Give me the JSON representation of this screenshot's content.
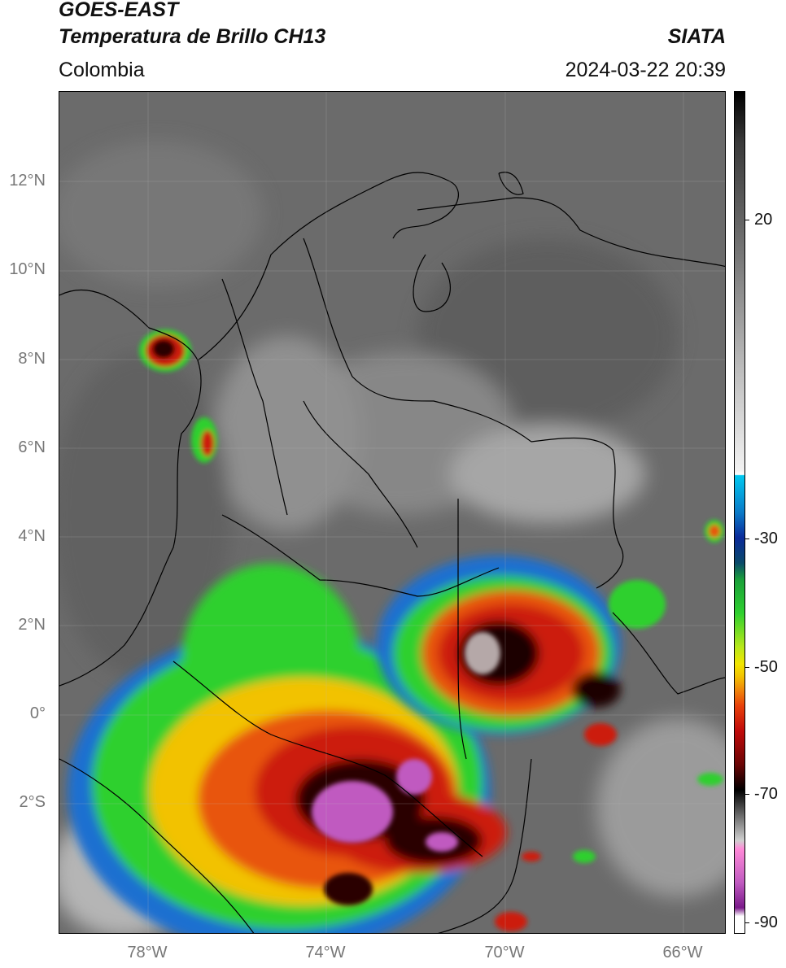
{
  "header": {
    "satellite": "GOES-EAST",
    "product": "Temperatura de Brillo CH13",
    "region": "Colombia",
    "organization": "SIATA",
    "datetime": "2024-03-22 20:39"
  },
  "axes": {
    "lat_labels": [
      "12°N",
      "10°N",
      "8°N",
      "6°N",
      "4°N",
      "2°N",
      "0°",
      "2°S"
    ],
    "lon_labels": [
      "78°W",
      "74°W",
      "70°W",
      "66°W"
    ]
  },
  "colorbar": {
    "labels": [
      "20",
      "-30",
      "-50",
      "-70",
      "-90"
    ]
  },
  "colors": {
    "background": "#6a6a6a",
    "storm_red": "#cc1a0a",
    "storm_core": "#1a0000",
    "overshoot": "#c05ac0",
    "anvil_green": "#2fd02f",
    "anvil_blue": "#1a6fd0"
  }
}
